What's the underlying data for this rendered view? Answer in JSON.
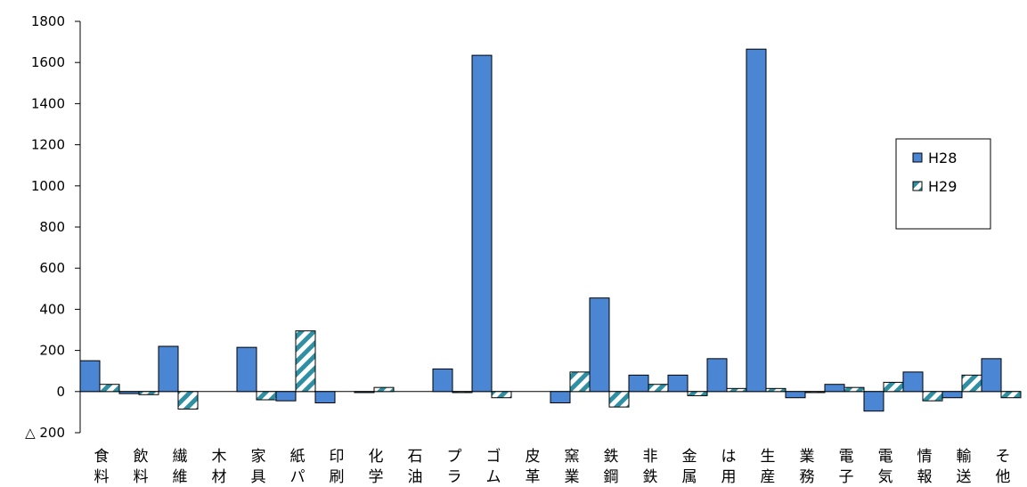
{
  "chart_data": {
    "type": "bar",
    "title": "",
    "xlabel": "",
    "ylabel": "",
    "ylim": [
      -200,
      1800
    ],
    "yticks": [
      1800,
      1600,
      1400,
      1200,
      1000,
      800,
      600,
      400,
      200,
      0
    ],
    "ytick_labels": [
      "1800",
      "1600",
      "1400",
      "1200",
      "1000",
      "800",
      "600",
      "400",
      "200",
      "0"
    ],
    "ytick_negative_label": "△ 200",
    "categories": [
      [
        "食",
        "料"
      ],
      [
        "飲",
        "料"
      ],
      [
        "繊",
        "維"
      ],
      [
        "木",
        "材"
      ],
      [
        "家",
        "具"
      ],
      [
        "紙",
        "パ"
      ],
      [
        "印",
        "刷"
      ],
      [
        "化",
        "学"
      ],
      [
        "石",
        "油"
      ],
      [
        "プ",
        "ラ"
      ],
      [
        "ゴ",
        "ム"
      ],
      [
        "皮",
        "革"
      ],
      [
        "窯",
        "業"
      ],
      [
        "鉄",
        "鋼"
      ],
      [
        "非",
        "鉄"
      ],
      [
        "金",
        "属"
      ],
      [
        "は",
        "用"
      ],
      [
        "生",
        "産"
      ],
      [
        "業",
        "務"
      ],
      [
        "電",
        "子"
      ],
      [
        "電",
        "気"
      ],
      [
        "情",
        "報"
      ],
      [
        "輸",
        "送"
      ],
      [
        "そ",
        "他"
      ]
    ],
    "series": [
      {
        "name": "H28",
        "color": "#4a86d4",
        "values": [
          150,
          -10,
          220,
          0,
          215,
          -45,
          -55,
          -5,
          0,
          110,
          1635,
          0,
          -55,
          455,
          80,
          80,
          160,
          1665,
          -30,
          35,
          -95,
          95,
          -30,
          160
        ]
      },
      {
        "name": "H29",
        "color": "#2f8fa3",
        "pattern": "diagonal-hatch",
        "values": [
          35,
          -15,
          -85,
          0,
          -40,
          295,
          0,
          20,
          0,
          -5,
          -30,
          0,
          95,
          -75,
          35,
          -20,
          15,
          15,
          -5,
          20,
          45,
          -45,
          80,
          -30
        ]
      }
    ],
    "grid": false,
    "legend": {
      "position": "top-right",
      "entries": [
        "H28",
        "H29"
      ]
    }
  }
}
